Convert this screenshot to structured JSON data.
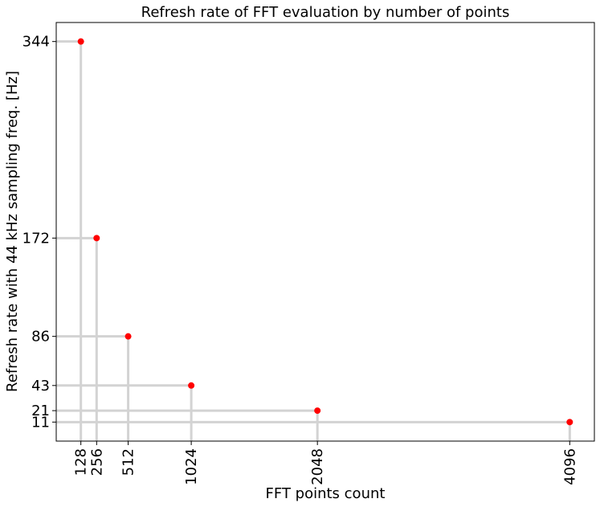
{
  "chart_data": {
    "type": "scatter",
    "title": "Refresh rate of FFT evaluation by number of points",
    "xlabel": "FFT points count",
    "ylabel": "Refresh rate with 44 kHz sampling freq. [Hz]",
    "x_ticks": [
      "128",
      "256",
      "512",
      "1024",
      "2048",
      "4096"
    ],
    "y_ticks": [
      "11",
      "21",
      "43",
      "86",
      "172",
      "344"
    ],
    "points": [
      {
        "x": 128,
        "y": 344
      },
      {
        "x": 256,
        "y": 172
      },
      {
        "x": 512,
        "y": 86
      },
      {
        "x": 1024,
        "y": 43
      },
      {
        "x": 2048,
        "y": 21
      },
      {
        "x": 4096,
        "y": 11
      }
    ],
    "xlim": [
      -72,
      4296
    ],
    "ylim": [
      -5.65,
      360.65
    ],
    "grid": false,
    "marker_color": "#ff0000",
    "guide_line_color": "#d3d3d3"
  }
}
